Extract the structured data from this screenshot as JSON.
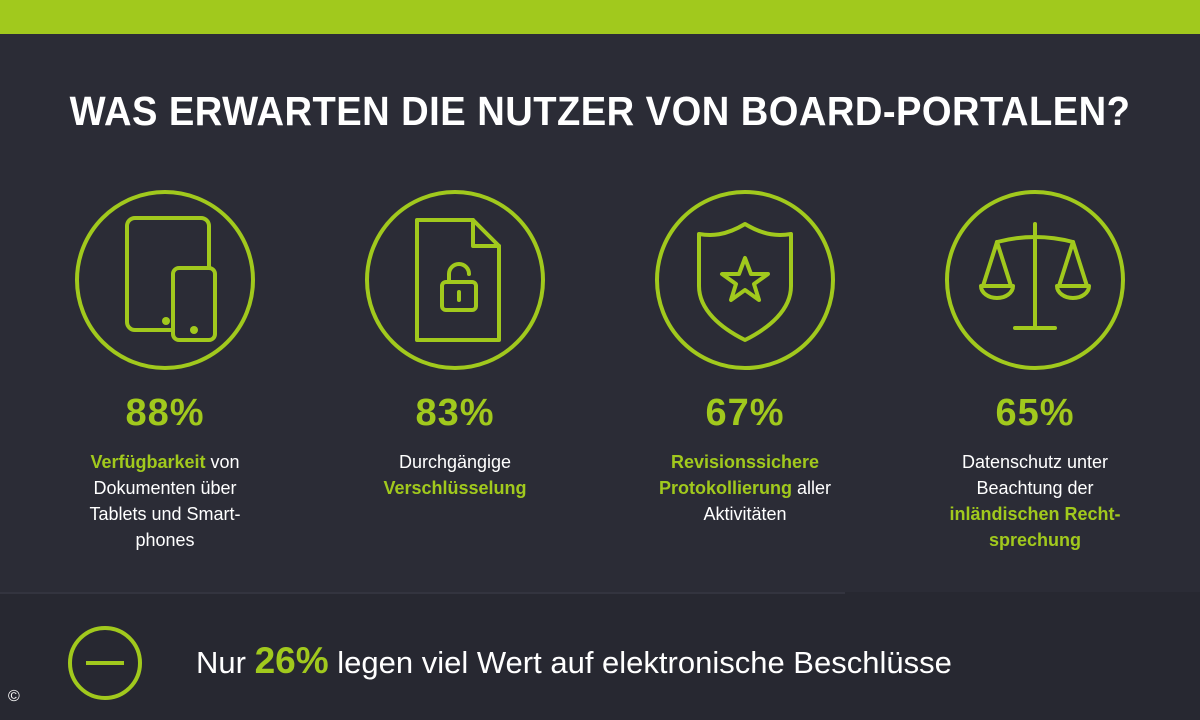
{
  "title": "WAS ERWARTEN DIE NUTZER VON BOARD-PORTALEN?",
  "colors": {
    "accent": "#a1c91d",
    "background": "#2b2c36",
    "text": "#ffffff"
  },
  "cards": [
    {
      "icon": "tablet-smartphone-icon",
      "percent": "88%",
      "desc": [
        {
          "hl": "Verfügbarkeit",
          "text": " von"
        },
        {
          "text": "Dokumenten über"
        },
        {
          "text": "Tablets und Smart-"
        },
        {
          "text": "phones"
        }
      ]
    },
    {
      "icon": "locked-document-icon",
      "percent": "83%",
      "desc": [
        {
          "text": "Durchgängige"
        },
        {
          "hl": "Verschlüsselung"
        }
      ]
    },
    {
      "icon": "shield-star-icon",
      "percent": "67%",
      "desc": [
        {
          "hl": "Revisionssichere"
        },
        {
          "hl": "Protokollierung",
          "text": " aller"
        },
        {
          "text": "Aktivitäten"
        }
      ]
    },
    {
      "icon": "scales-icon",
      "percent": "65%",
      "desc": [
        {
          "text": "Datenschutz unter"
        },
        {
          "text": "Beachtung der"
        },
        {
          "hl": "inländischen Recht-"
        },
        {
          "hl": "sprechung"
        }
      ]
    }
  ],
  "bottom": {
    "icon": "minus-circle-icon",
    "prefix": "Nur ",
    "percent": "26%",
    "suffix": " legen viel Wert auf elektronische Beschlüsse"
  },
  "copyright": "©"
}
